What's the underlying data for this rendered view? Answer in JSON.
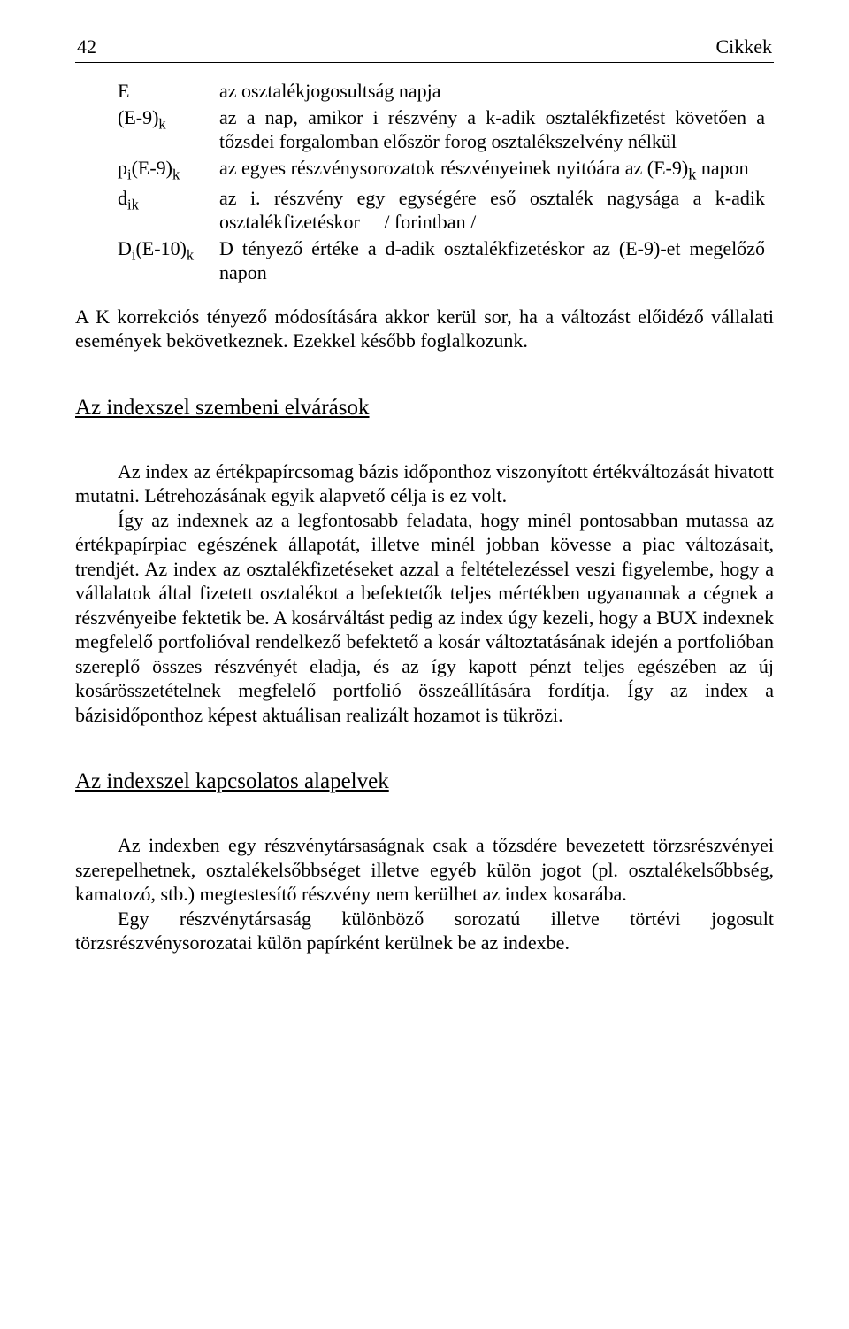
{
  "header": {
    "page_number": "42",
    "running_title": "Cikkek"
  },
  "definitions": [
    {
      "term_html": "E",
      "desc": "az osztalékjogosultság napja"
    },
    {
      "term_html": "(E-9)<span class=\"sub\">k</span>",
      "desc": "az a nap, amikor i részvény a k-adik osztalékfizetést követően a tőzsdei forgalomban először forog osztalékszelvény nélkül"
    },
    {
      "term_html": "p<span class=\"sub\">i</span>(E-9)<span class=\"sub\">k</span>",
      "desc": "az egyes részvénysorozatok részvényeinek nyitóára az (E-9)<sub>k</sub> napon"
    },
    {
      "term_html": "d<span class=\"sub\">ik</span>",
      "desc": "az i. részvény egy egységére eső osztalék nagysága a k-adik osztalékfizetéskor     / forintban /"
    },
    {
      "term_html": "D<span class=\"sub\">i</span>(E-10)<span class=\"sub\">k</span>",
      "desc": "D tényező értéke a d-adik osztalékfizetéskor az (E-9)-et megelőző napon"
    }
  ],
  "para_after_defs": "A K korrekciós tényező módosítására akkor kerül sor, ha a változást előidéző vállalati események bekövetkeznek. Ezekkel később foglalkozunk.",
  "section1": {
    "heading": "Az indexszel szembeni elvárások",
    "p1": "Az index az értékpapírcsomag bázis időponthoz viszonyított értékváltozását hivatott mutatni. Létrehozásának egyik alapvető célja is ez volt.",
    "p2": "Így az indexnek az a legfontosabb feladata, hogy minél pontosabban mutassa az értékpapírpiac egészének állapotát, illetve minél jobban kövesse a piac változásait, trendjét. Az index az osztalékfizetéseket azzal a feltételezéssel veszi figyelembe, hogy a vállalatok által fizetett osztalékot a befektetők teljes mértékben ugyanannak a cégnek a részvényeibe fektetik be. A kosárváltást pedig az index úgy kezeli, hogy a BUX indexnek megfelelő portfolióval rendelkező befektető a kosár változtatásának idején a portfolióban szereplő összes részvényét eladja, és az így kapott pénzt teljes egészében az új kosárösszetételnek megfelelő portfolió összeállítására fordítja. Így az index a bázisidőponthoz képest aktuálisan realizált hozamot is tükrözi."
  },
  "section2": {
    "heading": "Az indexszel kapcsolatos alapelvek",
    "p1": "Az indexben egy részvénytársaságnak csak a tőzsdére bevezetett törzsrészvényei szerepelhetnek, osztalékelsőbbséget illetve egyéb külön jogot (pl. osztalékelsőbbség, kamatozó, stb.) megtestesítő részvény nem kerülhet az index kosarába.",
    "p2": "Egy részvénytársaság különböző sorozatú illetve törtévi jogosult törzsrészvénysorozatai külön papírként kerülnek be az indexbe."
  }
}
